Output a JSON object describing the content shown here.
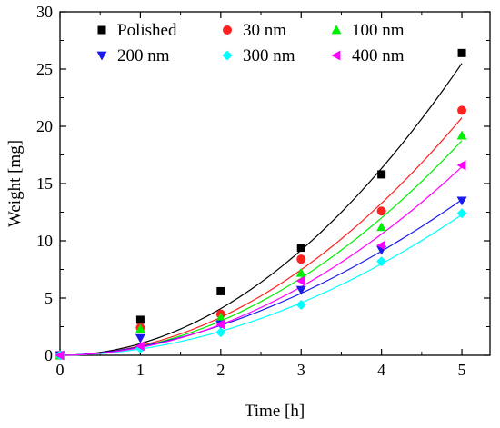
{
  "chart_data": {
    "type": "scatter",
    "title": "",
    "xlabel": "Time [h]",
    "ylabel": "Weight [mg]",
    "xlim": [
      0,
      5.35
    ],
    "ylim": [
      0,
      30
    ],
    "xticks": [
      0,
      1,
      2,
      3,
      4,
      5
    ],
    "yticks": [
      0,
      5,
      10,
      15,
      20,
      25,
      30
    ],
    "grid": false,
    "legend_position": "top",
    "x": [
      0,
      1,
      2,
      3,
      4,
      5
    ],
    "series": [
      {
        "name": "Polished",
        "color": "#000000",
        "marker": "square",
        "values": [
          0,
          3.1,
          5.6,
          9.4,
          15.8,
          26.4
        ],
        "fit": {
          "coef": 1.02,
          "exp": 2.0
        }
      },
      {
        "name": "30 nm",
        "color": "#ff2020",
        "marker": "circle",
        "values": [
          0,
          2.4,
          3.6,
          8.4,
          12.6,
          21.4
        ],
        "fit": {
          "coef": 0.83,
          "exp": 2.0
        }
      },
      {
        "name": "100 nm",
        "color": "#00ee00",
        "marker": "triangle-up",
        "values": [
          0,
          2.3,
          3.3,
          7.2,
          11.2,
          19.2
        ],
        "fit": {
          "coef": 0.75,
          "exp": 2.0
        }
      },
      {
        "name": "200 nm",
        "color": "#1a1aee",
        "marker": "triangle-down",
        "values": [
          0,
          1.5,
          2.7,
          5.7,
          9.2,
          13.5
        ],
        "fit": {
          "coef": 0.75,
          "exp": 1.8
        }
      },
      {
        "name": "300 nm",
        "color": "#00ffff",
        "marker": "diamond",
        "values": [
          0,
          0.6,
          2.0,
          4.4,
          8.2,
          12.4
        ],
        "fit": {
          "coef": 0.55,
          "exp": 1.93
        }
      },
      {
        "name": "400 nm",
        "color": "#ff00ff",
        "marker": "triangle-left",
        "values": [
          0,
          0.8,
          2.7,
          6.5,
          9.6,
          16.6
        ],
        "fit": {
          "coef": 0.68,
          "exp": 1.98
        }
      }
    ]
  }
}
